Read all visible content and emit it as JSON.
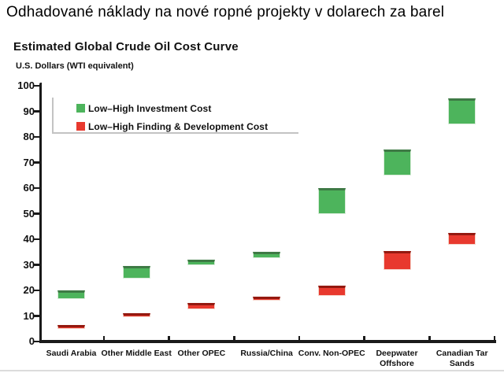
{
  "page_title": "Odhadované náklady na nové ropné projekty v dolarech za barel",
  "chart_data": {
    "type": "bar",
    "subtype": "floating-range-columns",
    "title": "Estimated Global Crude Oil Cost Curve",
    "ylabel": "U.S. Dollars (WTI equivalent)",
    "xlabel": "",
    "categories": [
      "Saudi Arabia",
      "Other Middle East",
      "Other OPEC",
      "Russia/China",
      "Conv. Non-OPEC",
      "Deepwater Offshore",
      "Canadian Tar Sands"
    ],
    "series": [
      {
        "name": "Low–High Investment Cost",
        "color": "#4db45c",
        "edge_color": "#3e7a45",
        "halo_color": "#d9ecd9",
        "ranges": [
          [
            16.5,
            20
          ],
          [
            24.5,
            29.5
          ],
          [
            30,
            32
          ],
          [
            32.5,
            35
          ],
          [
            50,
            60
          ],
          [
            65,
            75
          ],
          [
            85,
            95
          ]
        ]
      },
      {
        "name": "Low–High Finding & Development Cost",
        "color": "#e8392e",
        "edge_color": "#941910",
        "halo_color": "#f5d5cb",
        "ranges": [
          [
            5.5,
            6.5
          ],
          [
            9.5,
            11
          ],
          [
            12.5,
            15
          ],
          [
            16,
            17.5
          ],
          [
            18,
            22
          ],
          [
            28,
            35.5
          ],
          [
            38,
            42.5
          ]
        ]
      }
    ],
    "ylim": [
      0,
      100
    ],
    "ytick_step": 10,
    "grid": false,
    "legend_position": "top-left-inside",
    "axis_color": "#1a1a1a"
  }
}
